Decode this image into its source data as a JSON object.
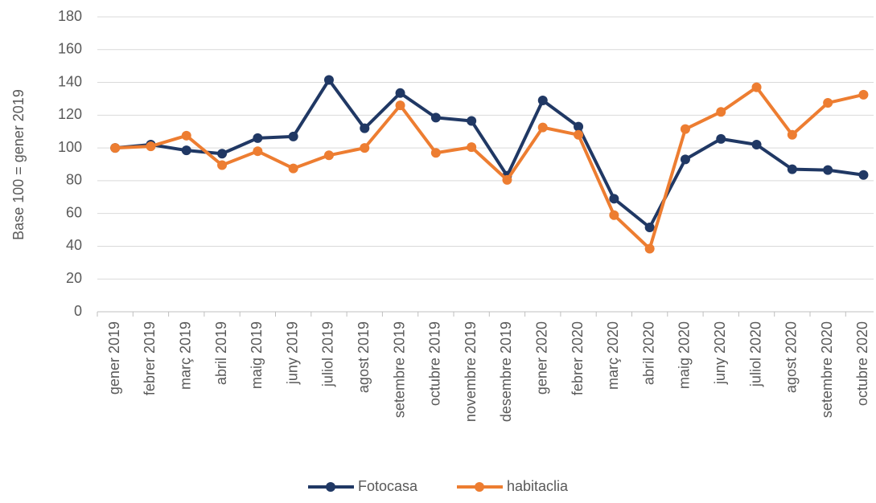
{
  "chart_data": {
    "type": "line",
    "y_label": "Base 100 = gener 2019",
    "categories": [
      "gener 2019",
      "febrer 2019",
      "març 2019",
      "abril 2019",
      "maig 2019",
      "juny 2019",
      "juliol 2019",
      "agost 2019",
      "setembre 2019",
      "octubre 2019",
      "novembre 2019",
      "desembre 2019",
      "gener 2020",
      "febrer 2020",
      "març 2020",
      "abril 2020",
      "maig 2020",
      "juny 2020",
      "juliol 2020",
      "agost 2020",
      "setembre 2020",
      "octubre 2020"
    ],
    "series": [
      {
        "name": "Fotocasa",
        "color": "#203864",
        "values": [
          100,
          102,
          98.5,
          96.5,
          106,
          107,
          141.5,
          112,
          133.5,
          118.5,
          116.5,
          83,
          129,
          113,
          69,
          51.5,
          93,
          105.5,
          102,
          87,
          86.5,
          83.5
        ]
      },
      {
        "name": "habitaclia",
        "color": "#ed7d31",
        "values": [
          100,
          101,
          107.5,
          89.5,
          98,
          87.5,
          95.5,
          100,
          126,
          97,
          100.5,
          80.5,
          112.5,
          108,
          59,
          38.5,
          111.5,
          122,
          137,
          108,
          127.5,
          132.5
        ]
      }
    ],
    "ylim": [
      0,
      180
    ],
    "yticks": [
      0,
      20,
      40,
      60,
      80,
      100,
      120,
      140,
      160,
      180
    ],
    "grid": true,
    "legend": "bottom"
  }
}
